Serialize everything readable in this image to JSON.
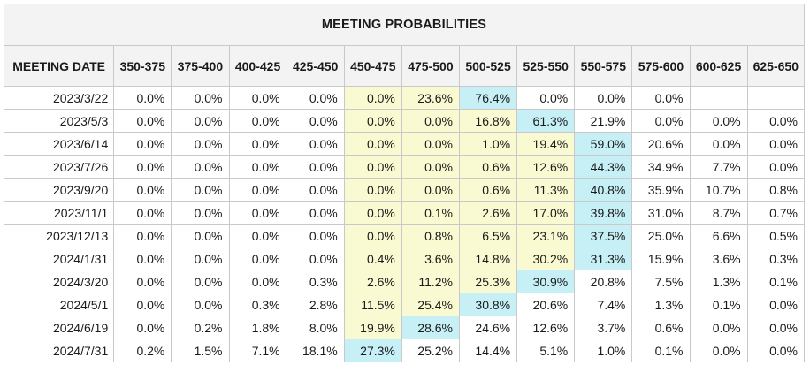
{
  "title": "MEETING PROBABILITIES",
  "colors": {
    "yellow_highlight": "#fafad2",
    "blue_highlight": "#c6f0f6",
    "header_bg": "#f3f3f3"
  },
  "headers": [
    "MEETING DATE",
    "350-375",
    "375-400",
    "400-425",
    "425-450",
    "450-475",
    "475-500",
    "500-525",
    "525-550",
    "550-575",
    "575-600",
    "600-625",
    "625-650"
  ],
  "rows": [
    {
      "date": "2023/3/22",
      "values": [
        "0.0%",
        "0.0%",
        "0.0%",
        "0.0%",
        "0.0%",
        "23.6%",
        "76.4%",
        "0.0%",
        "0.0%",
        "0.0%",
        "",
        ""
      ],
      "yellow": [
        4,
        5
      ],
      "blue": 6
    },
    {
      "date": "2023/5/3",
      "values": [
        "0.0%",
        "0.0%",
        "0.0%",
        "0.0%",
        "0.0%",
        "0.0%",
        "16.8%",
        "61.3%",
        "21.9%",
        "0.0%",
        "0.0%",
        "0.0%"
      ],
      "yellow": [
        4,
        5,
        6
      ],
      "blue": 7
    },
    {
      "date": "2023/6/14",
      "values": [
        "0.0%",
        "0.0%",
        "0.0%",
        "0.0%",
        "0.0%",
        "0.0%",
        "1.0%",
        "19.4%",
        "59.0%",
        "20.6%",
        "0.0%",
        "0.0%"
      ],
      "yellow": [
        4,
        5,
        6,
        7
      ],
      "blue": 8
    },
    {
      "date": "2023/7/26",
      "values": [
        "0.0%",
        "0.0%",
        "0.0%",
        "0.0%",
        "0.0%",
        "0.0%",
        "0.6%",
        "12.6%",
        "44.3%",
        "34.9%",
        "7.7%",
        "0.0%"
      ],
      "yellow": [
        4,
        5,
        6,
        7
      ],
      "blue": 8
    },
    {
      "date": "2023/9/20",
      "values": [
        "0.0%",
        "0.0%",
        "0.0%",
        "0.0%",
        "0.0%",
        "0.0%",
        "0.6%",
        "11.3%",
        "40.8%",
        "35.9%",
        "10.7%",
        "0.8%"
      ],
      "yellow": [
        4,
        5,
        6,
        7
      ],
      "blue": 8
    },
    {
      "date": "2023/11/1",
      "values": [
        "0.0%",
        "0.0%",
        "0.0%",
        "0.0%",
        "0.0%",
        "0.1%",
        "2.6%",
        "17.0%",
        "39.8%",
        "31.0%",
        "8.7%",
        "0.7%"
      ],
      "yellow": [
        4,
        5,
        6,
        7
      ],
      "blue": 8
    },
    {
      "date": "2023/12/13",
      "values": [
        "0.0%",
        "0.0%",
        "0.0%",
        "0.0%",
        "0.0%",
        "0.8%",
        "6.5%",
        "23.1%",
        "37.5%",
        "25.0%",
        "6.6%",
        "0.5%"
      ],
      "yellow": [
        4,
        5,
        6,
        7
      ],
      "blue": 8
    },
    {
      "date": "2024/1/31",
      "values": [
        "0.0%",
        "0.0%",
        "0.0%",
        "0.0%",
        "0.4%",
        "3.6%",
        "14.8%",
        "30.2%",
        "31.3%",
        "15.9%",
        "3.6%",
        "0.3%"
      ],
      "yellow": [
        4,
        5,
        6,
        7
      ],
      "blue": 8
    },
    {
      "date": "2024/3/20",
      "values": [
        "0.0%",
        "0.0%",
        "0.0%",
        "0.3%",
        "2.6%",
        "11.2%",
        "25.3%",
        "30.9%",
        "20.8%",
        "7.5%",
        "1.3%",
        "0.1%"
      ],
      "yellow": [
        4,
        5,
        6
      ],
      "blue": 7
    },
    {
      "date": "2024/5/1",
      "values": [
        "0.0%",
        "0.0%",
        "0.3%",
        "2.8%",
        "11.5%",
        "25.4%",
        "30.8%",
        "20.6%",
        "7.4%",
        "1.3%",
        "0.1%",
        "0.0%"
      ],
      "yellow": [
        4,
        5
      ],
      "blue": 6
    },
    {
      "date": "2024/6/19",
      "values": [
        "0.0%",
        "0.2%",
        "1.8%",
        "8.0%",
        "19.9%",
        "28.6%",
        "24.6%",
        "12.6%",
        "3.7%",
        "0.6%",
        "0.0%",
        "0.0%"
      ],
      "yellow": [
        4
      ],
      "blue": 5
    },
    {
      "date": "2024/7/31",
      "values": [
        "0.2%",
        "1.5%",
        "7.1%",
        "18.1%",
        "27.3%",
        "25.2%",
        "14.4%",
        "5.1%",
        "1.0%",
        "0.1%",
        "0.0%",
        "0.0%"
      ],
      "yellow": [],
      "blue": 4
    }
  ]
}
